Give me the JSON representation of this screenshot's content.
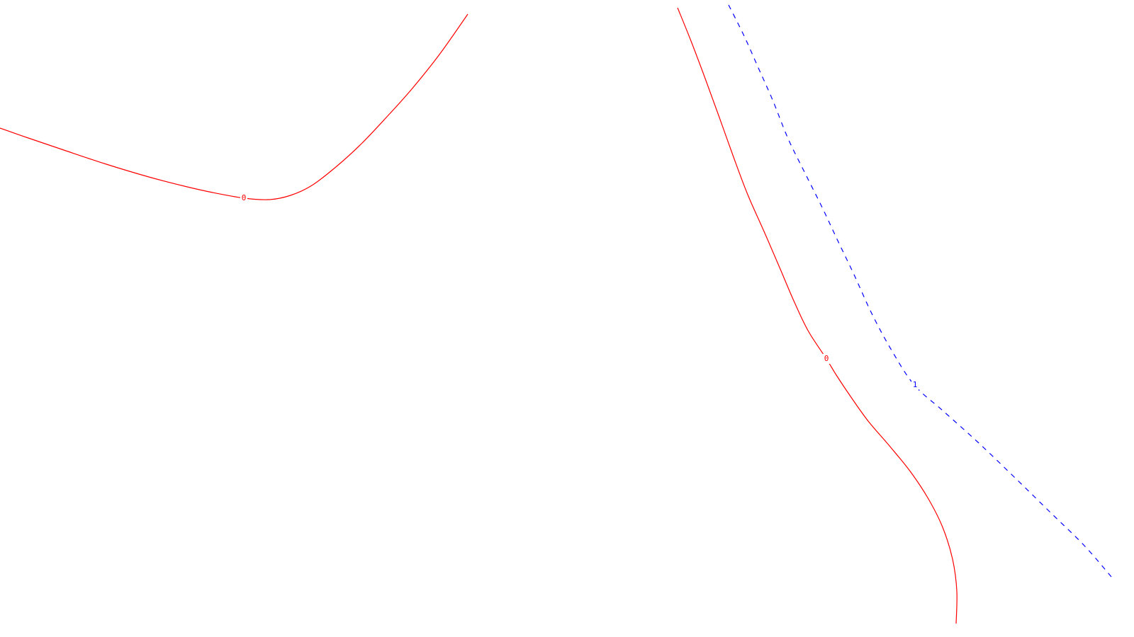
{
  "chart_data": {
    "type": "line",
    "title": "",
    "xlabel": "",
    "ylabel": "",
    "grid": false,
    "legend": "none",
    "series": [
      {
        "level_label": "0",
        "color": "#ff0000",
        "dash": "solid",
        "points": [
          [
            0,
            181
          ],
          [
            40,
            195
          ],
          [
            90,
            212
          ],
          [
            150,
            232
          ],
          [
            210,
            250
          ],
          [
            260,
            263
          ],
          [
            300,
            272
          ],
          [
            345,
            280
          ],
          [
            380,
            282
          ],
          [
            410,
            276
          ],
          [
            440,
            262
          ],
          [
            475,
            235
          ],
          [
            510,
            203
          ],
          [
            545,
            166
          ],
          [
            580,
            127
          ],
          [
            620,
            77
          ],
          [
            660,
            20
          ]
        ],
        "label_at": [
          344,
          280
        ]
      },
      {
        "level_label": "0",
        "color": "#ff0000",
        "dash": "solid",
        "points": [
          [
            956,
            11
          ],
          [
            975,
            58
          ],
          [
            995,
            111
          ],
          [
            1015,
            166
          ],
          [
            1035,
            222
          ],
          [
            1055,
            275
          ],
          [
            1078,
            327
          ],
          [
            1100,
            378
          ],
          [
            1120,
            425
          ],
          [
            1140,
            467
          ],
          [
            1166,
            507
          ],
          [
            1180,
            530
          ],
          [
            1200,
            560
          ],
          [
            1225,
            595
          ],
          [
            1255,
            630
          ],
          [
            1285,
            667
          ],
          [
            1310,
            705
          ],
          [
            1330,
            745
          ],
          [
            1344,
            790
          ],
          [
            1350,
            835
          ],
          [
            1349,
            881
          ]
        ],
        "label_at": [
          1166,
          507
        ]
      },
      {
        "level_label": "1",
        "color": "#0000ff",
        "dash": "dashed",
        "points": [
          [
            1028,
            7
          ],
          [
            1050,
            51
          ],
          [
            1070,
            96
          ],
          [
            1090,
            141
          ],
          [
            1112,
            196
          ],
          [
            1136,
            245
          ],
          [
            1160,
            293
          ],
          [
            1182,
            340
          ],
          [
            1205,
            388
          ],
          [
            1230,
            443
          ],
          [
            1258,
            495
          ],
          [
            1290,
            544
          ],
          [
            1330,
            580
          ],
          [
            1380,
            625
          ],
          [
            1430,
            673
          ],
          [
            1480,
            722
          ],
          [
            1530,
            771
          ],
          [
            1568,
            815
          ]
        ],
        "label_at": [
          1291,
          544
        ]
      }
    ]
  }
}
